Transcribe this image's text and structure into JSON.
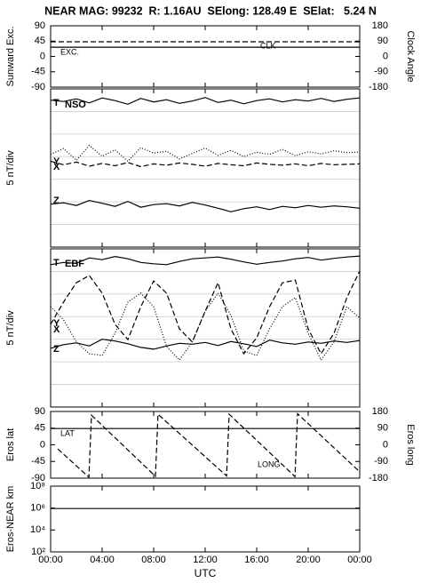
{
  "title": "NEAR MAG: 99232  R: 1.16AU  SElong: 128.49 E  SElat:   5.24 N",
  "chart_data": [
    {
      "type": "line",
      "ylabel": "Sunward Exc.",
      "y2label": "Clock Angle",
      "xlim": [
        0,
        24
      ],
      "ylim": [
        -90,
        90
      ],
      "yticks": [
        90,
        45,
        0,
        -45,
        -90
      ],
      "y2lim": [
        -180,
        180
      ],
      "y2ticks": [
        180,
        90,
        0,
        -90,
        -180
      ],
      "x": [
        0,
        24
      ],
      "series": [
        {
          "name": "EXC.",
          "color": "#000000",
          "dash": "solid",
          "values": [
            27,
            27
          ]
        },
        {
          "name": "CLK",
          "color": "#000000",
          "dash": "dashed",
          "axis": "y2",
          "values": [
            86,
            86
          ]
        }
      ]
    },
    {
      "type": "line",
      "ylabel": "5 nT/div",
      "annotation": "NSO",
      "grid": true,
      "ytick_labels": false,
      "xlim": [
        0,
        24
      ],
      "ylim": [
        0,
        35
      ],
      "yticks": [
        0,
        5,
        10,
        15,
        20,
        25,
        30,
        35
      ],
      "x": [
        0,
        1,
        2,
        3,
        4,
        5,
        6,
        7,
        8,
        9,
        10,
        11,
        12,
        13,
        14,
        15,
        16,
        17,
        18,
        19,
        20,
        21,
        22,
        23,
        24
      ],
      "series": [
        {
          "name": "T",
          "color": "#000000",
          "dash": "solid",
          "values": [
            32.5,
            32.2,
            32.8,
            31.9,
            33.0,
            32.4,
            31.6,
            32.9,
            32.1,
            32.6,
            31.8,
            32.3,
            33.1,
            32.0,
            32.5,
            31.7,
            32.4,
            32.8,
            32.1,
            32.6,
            32.3,
            32.9,
            32.2,
            32.7,
            33.0
          ]
        },
        {
          "name": "Y",
          "color": "#000000",
          "dash": "dotted",
          "values": [
            20.5,
            21.8,
            19.2,
            22.5,
            20.1,
            21.5,
            19.0,
            22.0,
            20.8,
            21.2,
            19.5,
            20.7,
            21.9,
            20.3,
            21.4,
            20.0,
            21.0,
            20.5,
            21.6,
            20.2,
            21.1,
            20.6,
            21.3,
            20.9,
            21.0
          ]
        },
        {
          "name": "X",
          "color": "#000000",
          "dash": "dashed",
          "values": [
            19.0,
            18.2,
            18.8,
            17.9,
            18.5,
            18.0,
            18.7,
            17.8,
            18.4,
            18.1,
            18.6,
            18.3,
            17.9,
            18.5,
            18.2,
            18.0,
            18.6,
            18.3,
            18.1,
            18.4,
            18.0,
            18.5,
            18.2,
            18.3,
            18.4
          ]
        },
        {
          "name": "Z",
          "color": "#000000",
          "dash": "solid",
          "values": [
            9.5,
            9.8,
            9.2,
            10.3,
            9.7,
            9.0,
            10.1,
            8.8,
            9.4,
            9.6,
            9.1,
            9.9,
            9.3,
            8.6,
            7.8,
            8.5,
            8.9,
            8.3,
            9.0,
            8.7,
            9.2,
            8.8,
            9.1,
            8.9,
            8.6
          ]
        }
      ]
    },
    {
      "type": "line",
      "ylabel": "5 nT/div",
      "annotation": "EBF",
      "grid": true,
      "ytick_labels": false,
      "xlim": [
        0,
        24
      ],
      "ylim": [
        0,
        35
      ],
      "yticks": [
        0,
        5,
        10,
        15,
        20,
        25,
        30,
        35
      ],
      "x": [
        0,
        1,
        2,
        3,
        4,
        5,
        6,
        7,
        8,
        9,
        10,
        11,
        12,
        13,
        14,
        15,
        16,
        17,
        18,
        19,
        20,
        21,
        22,
        23,
        24
      ],
      "series": [
        {
          "name": "T",
          "color": "#000000",
          "dash": "solid",
          "values": [
            31.5,
            32.0,
            31.8,
            33.0,
            32.6,
            33.3,
            32.8,
            32.0,
            31.7,
            31.5,
            32.2,
            32.8,
            33.0,
            33.2,
            32.7,
            32.1,
            31.6,
            32.0,
            32.3,
            32.8,
            33.1,
            32.5,
            32.9,
            33.2,
            33.4
          ]
        },
        {
          "name": "Y",
          "color": "#000000",
          "dash": "dotted",
          "values": [
            22.2,
            19.3,
            14.4,
            11.8,
            11.4,
            16.3,
            23.2,
            25.2,
            22.2,
            13.4,
            10.4,
            14.4,
            21.2,
            25.2,
            20.3,
            12.4,
            11.4,
            17.3,
            22.2,
            24.2,
            16.3,
            10.4,
            14.4,
            22.2,
            19.7
          ]
        },
        {
          "name": "X",
          "color": "#000000",
          "dash": "dashed",
          "values": [
            18.3,
            23.2,
            27.5,
            29.1,
            25.2,
            18.3,
            14.9,
            22.2,
            27.9,
            25.2,
            17.3,
            14.4,
            21.2,
            27.5,
            17.3,
            11.8,
            15.3,
            22.2,
            27.5,
            28.1,
            17.3,
            11.8,
            16.3,
            24.2,
            30.1
          ]
        },
        {
          "name": "Z",
          "color": "#000000",
          "dash": "solid",
          "values": [
            13.0,
            13.8,
            14.2,
            13.5,
            15.0,
            14.6,
            14.0,
            13.2,
            12.8,
            13.5,
            14.1,
            13.9,
            14.3,
            13.6,
            14.5,
            14.0,
            13.4,
            14.8,
            14.2,
            13.9,
            14.4,
            14.1,
            14.6,
            14.3,
            14.7
          ]
        }
      ]
    },
    {
      "type": "line",
      "ylabel": "Eros lat",
      "y2label": "Eros long",
      "xlim": [
        0,
        24
      ],
      "ylim": [
        -90,
        90
      ],
      "yticks": [
        90,
        45,
        0,
        -45,
        -90
      ],
      "y2lim": [
        -180,
        180
      ],
      "y2ticks": [
        180,
        90,
        0,
        -90,
        -180
      ],
      "series": [
        {
          "name": "LAT",
          "color": "#000000",
          "dash": "solid",
          "x": [
            0,
            24
          ],
          "values": [
            44,
            44
          ]
        },
        {
          "name": "LONG",
          "color": "#000000",
          "dash": "dashed",
          "axis": "y2",
          "x": [
            0.55,
            2.97,
            3.17,
            8.14,
            8.34,
            13.66,
            13.86,
            18.97,
            19.17,
            24
          ],
          "values": [
            -22,
            -175,
            160,
            -170,
            165,
            -168,
            165,
            -172,
            168,
            -146
          ]
        }
      ]
    },
    {
      "type": "line",
      "ylabel": "Eros-NEAR km",
      "xlabel": "UTC",
      "log_y": true,
      "xlim": [
        0,
        24
      ],
      "ylim": [
        100,
        100000000
      ],
      "yticks": [
        {
          "value": 100000000,
          "label": "10⁸"
        },
        {
          "value": 1000000,
          "label": "10⁶"
        },
        {
          "value": 10000,
          "label": "10⁴"
        },
        {
          "value": 100,
          "label": "10²"
        }
      ],
      "xticks": [
        {
          "value": 0,
          "label": "00:00"
        },
        {
          "value": 4,
          "label": "04:00"
        },
        {
          "value": 8,
          "label": "08:00"
        },
        {
          "value": 12,
          "label": "12:00"
        },
        {
          "value": 16,
          "label": "16:00"
        },
        {
          "value": 20,
          "label": "20:00"
        },
        {
          "value": 24,
          "label": "00:00"
        }
      ],
      "x": [
        0,
        24
      ],
      "series": [
        {
          "name": null,
          "color": "#000000",
          "dash": "solid",
          "values": [
            900000,
            900000
          ]
        }
      ]
    }
  ]
}
